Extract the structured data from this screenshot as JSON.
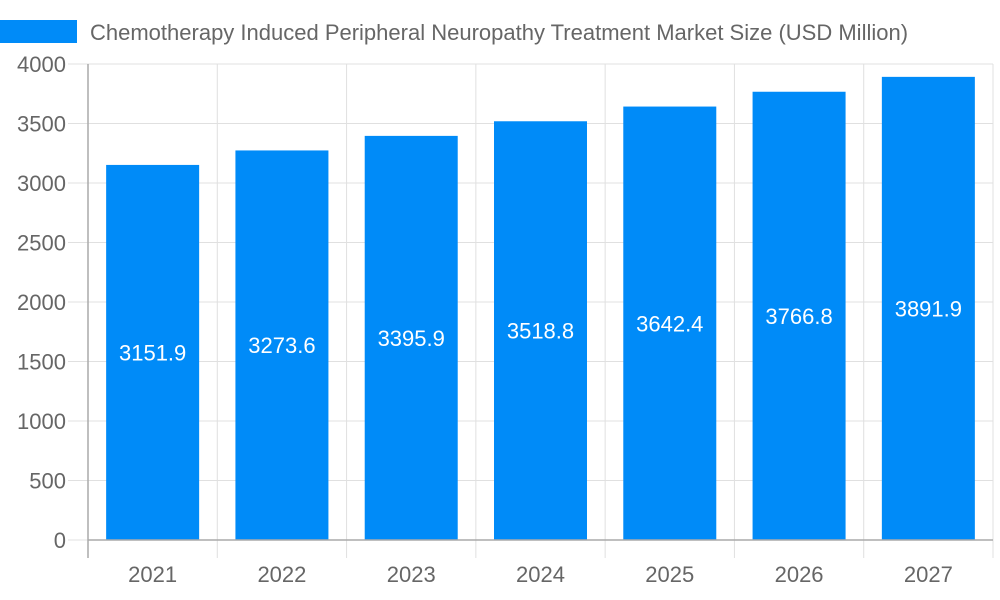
{
  "chart_data": {
    "type": "bar",
    "title": "",
    "xlabel": "",
    "ylabel": "",
    "categories": [
      "2021",
      "2022",
      "2023",
      "2024",
      "2025",
      "2026",
      "2027"
    ],
    "series": [
      {
        "name": "Chemotherapy Induced Peripheral Neuropathy Treatment Market Size (USD Million)",
        "values": [
          3151.9,
          3273.6,
          3395.9,
          3518.8,
          3642.4,
          3766.8,
          3891.9
        ]
      }
    ],
    "ylim": [
      0,
      4000
    ],
    "yticks": [
      0,
      500,
      1000,
      1500,
      2000,
      2500,
      3000,
      3500,
      4000
    ],
    "grid": true,
    "legend_position": "top",
    "data_labels": "inside-center",
    "colors": {
      "bar": "#008bf8",
      "text": "#666666",
      "grid": "#e0e0e0",
      "axis": "#aaaaaa",
      "label": "#ffffff"
    }
  }
}
